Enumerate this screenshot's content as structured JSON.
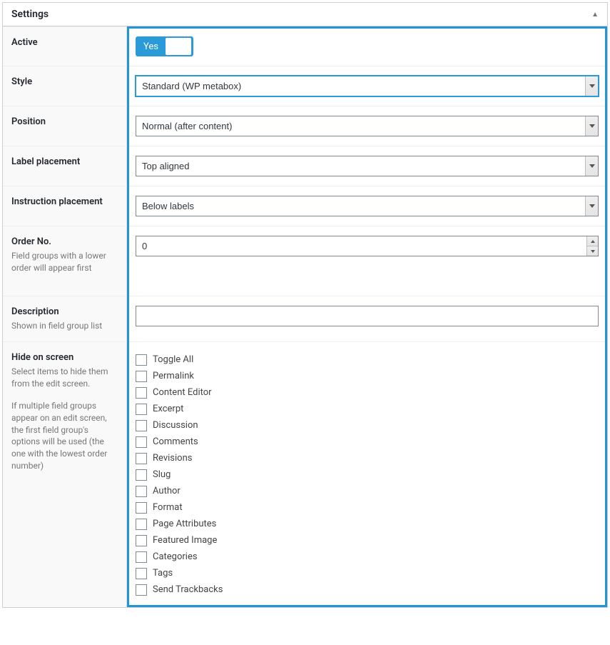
{
  "panel_title": "Settings",
  "colors": {
    "accent": "#2a9bd8",
    "border": "#ccd0d4",
    "highlight_border": "#2296d4",
    "label_bg": "#f9f9f9",
    "text_muted": "#777"
  },
  "fields": {
    "active": {
      "label": "Active",
      "toggle_text": "Yes",
      "value": true
    },
    "style": {
      "label": "Style",
      "value": "Standard (WP metabox)",
      "focused": true
    },
    "position": {
      "label": "Position",
      "value": "Normal (after content)"
    },
    "label_placement": {
      "label": "Label placement",
      "value": "Top aligned"
    },
    "instruction_placement": {
      "label": "Instruction placement",
      "value": "Below labels"
    },
    "order_no": {
      "label": "Order No.",
      "description": "Field groups with a lower order will appear first",
      "value": "0"
    },
    "description": {
      "label": "Description",
      "description_text": "Shown in field group list",
      "value": ""
    },
    "hide_on_screen": {
      "label": "Hide on screen",
      "description_1": "Select items to hide them from the edit screen.",
      "description_2": "If multiple field groups appear on an edit screen, the first field group's options will be used (the one with the lowest order number)",
      "options": [
        "Toggle All",
        "Permalink",
        "Content Editor",
        "Excerpt",
        "Discussion",
        "Comments",
        "Revisions",
        "Slug",
        "Author",
        "Format",
        "Page Attributes",
        "Featured Image",
        "Categories",
        "Tags",
        "Send Trackbacks"
      ]
    }
  }
}
